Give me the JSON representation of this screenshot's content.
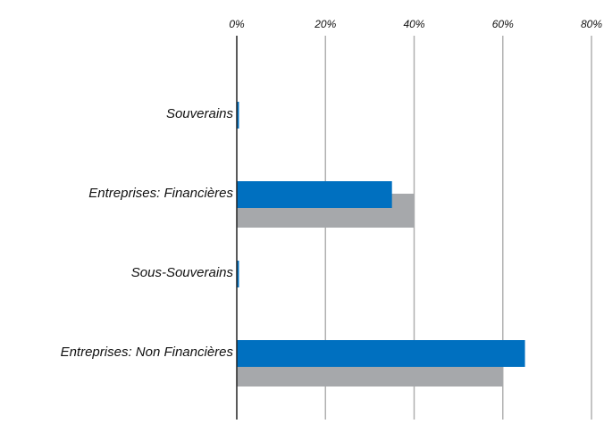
{
  "chart_data": {
    "type": "barh",
    "categories": [
      "Souverains",
      "Entreprises: Financières",
      "Sous-Souverains",
      "Entreprises: Non Financières"
    ],
    "series": [
      {
        "color": "#a6a8ab",
        "values": [
          0,
          40,
          0,
          60
        ]
      },
      {
        "color": "#0070c0",
        "values": [
          0.5,
          35,
          0.5,
          65
        ]
      }
    ],
    "xlim": [
      0,
      80
    ],
    "xticks": [
      {
        "value": 0,
        "label": "0%"
      },
      {
        "value": 20,
        "label": "20%"
      },
      {
        "value": 40,
        "label": "40%"
      },
      {
        "value": 60,
        "label": "60%"
      },
      {
        "value": 80,
        "label": "80%"
      }
    ],
    "grid": true
  }
}
